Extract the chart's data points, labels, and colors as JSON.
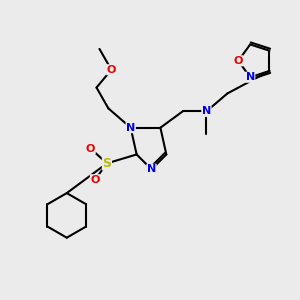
{
  "bg_color": "#ebebeb",
  "atom_colors": {
    "C": "#000000",
    "N": "#0000ee",
    "O": "#ee0000",
    "S": "#bbbb00"
  },
  "bond_color": "#000000",
  "bond_width": 1.5
}
